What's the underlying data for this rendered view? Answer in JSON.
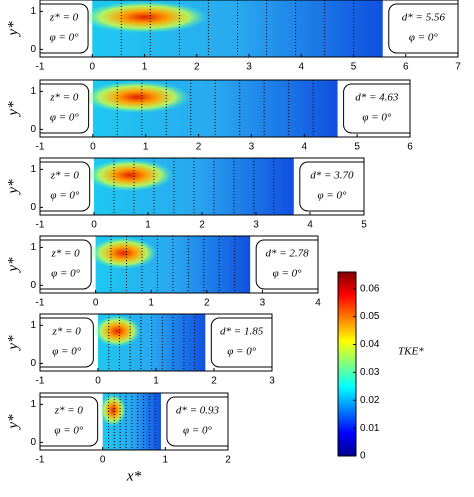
{
  "chart_data": [
    {
      "type": "heatmap",
      "ylabel": "y*",
      "xlim": [
        -1,
        7
      ],
      "xticks": [
        -1,
        0,
        1,
        2,
        3,
        4,
        5,
        6,
        7
      ],
      "ylim": [
        -0.2,
        1.3
      ],
      "yticks": [
        0,
        1
      ],
      "extent": [
        0,
        5.56
      ],
      "left_note": [
        "z* = 0",
        "φ = 0°"
      ],
      "right_note": [
        "d* = 5.56",
        "φ = 0°"
      ]
    },
    {
      "type": "heatmap",
      "ylabel": "y*",
      "xlim": [
        -1,
        6
      ],
      "xticks": [
        -1,
        0,
        1,
        2,
        3,
        4,
        5,
        6
      ],
      "ylim": [
        -0.2,
        1.3
      ],
      "yticks": [
        0,
        1
      ],
      "extent": [
        0,
        4.63
      ],
      "left_note": [
        "z* = 0",
        "φ = 0°"
      ],
      "right_note": [
        "d* = 4.63",
        "φ = 0°"
      ]
    },
    {
      "type": "heatmap",
      "ylabel": "y*",
      "xlim": [
        -1,
        5
      ],
      "xticks": [
        -1,
        0,
        1,
        2,
        3,
        4,
        5
      ],
      "ylim": [
        -0.2,
        1.3
      ],
      "yticks": [
        0,
        1
      ],
      "extent": [
        0,
        3.7
      ],
      "left_note": [
        "z* = 0",
        "φ = 0°"
      ],
      "right_note": [
        "d* = 3.70",
        "φ = 0°"
      ]
    },
    {
      "type": "heatmap",
      "ylabel": "y*",
      "xlim": [
        -1,
        4
      ],
      "xticks": [
        -1,
        0,
        1,
        2,
        3,
        4
      ],
      "ylim": [
        -0.2,
        1.3
      ],
      "yticks": [
        0,
        1
      ],
      "extent": [
        0,
        2.78
      ],
      "left_note": [
        "z* = 0",
        "φ = 0°"
      ],
      "right_note": [
        "d* = 2.78",
        "φ = 0°"
      ]
    },
    {
      "type": "heatmap",
      "ylabel": "y*",
      "xlim": [
        -1,
        3
      ],
      "xticks": [
        -1,
        0,
        1,
        2,
        3
      ],
      "ylim": [
        -0.2,
        1.3
      ],
      "yticks": [
        0,
        1
      ],
      "extent": [
        0,
        1.85
      ],
      "left_note": [
        "z* = 0",
        "φ = 0°"
      ],
      "right_note": [
        "d* = 1.85",
        "φ = 0°"
      ]
    },
    {
      "type": "heatmap",
      "ylabel": "y*",
      "xlabel": "x*",
      "xlim": [
        -1,
        2
      ],
      "xticks": [
        -1,
        0,
        1,
        2
      ],
      "ylim": [
        -0.2,
        1.3
      ],
      "yticks": [
        0,
        1
      ],
      "extent": [
        0,
        0.93
      ],
      "left_note": [
        "z* = 0",
        "φ = 0°"
      ],
      "right_note": [
        "d* = 0.93",
        "φ = 0°"
      ]
    }
  ],
  "colorbar": {
    "label": "TKE*",
    "colormap": "jet",
    "clim": [
      0,
      0.066
    ],
    "ticks": [
      0,
      0.01,
      0.02,
      0.03,
      0.04,
      0.05,
      0.06
    ]
  }
}
